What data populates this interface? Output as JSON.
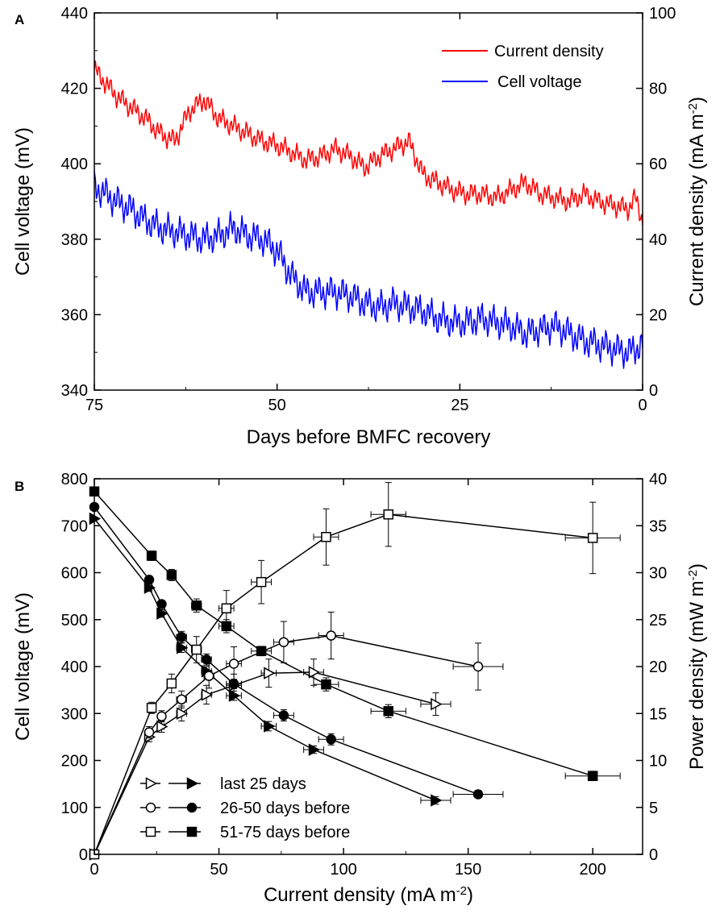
{
  "chart_data": [
    {
      "panel_label": "A",
      "type": "line",
      "xlabel": "Days before BMFC recovery",
      "ylabel_left": "Cell voltage (mV)",
      "ylabel_right": "Current density (mA m",
      "ylabel_right_sup": "-2",
      "ylabel_right_close": ")",
      "xlim": [
        75,
        0
      ],
      "xticks": [
        75,
        50,
        25,
        0
      ],
      "ylim_left": [
        340,
        440
      ],
      "yticks_left": [
        340,
        360,
        380,
        400,
        420,
        440
      ],
      "ylim_right": [
        0,
        100
      ],
      "yticks_right": [
        0,
        20,
        40,
        60,
        80,
        100
      ],
      "legend_position": "top-right",
      "series": [
        {
          "name": "Current density",
          "axis": "right",
          "color": "#ff0000",
          "x": [
            75,
            72,
            70,
            68,
            66,
            64,
            62,
            60,
            58,
            56,
            54,
            52,
            50,
            48,
            46,
            44,
            42,
            40,
            38,
            36,
            34,
            32,
            30,
            28,
            26,
            24,
            22,
            20,
            18,
            16,
            14,
            12,
            10,
            8,
            6,
            4,
            2,
            1,
            0
          ],
          "y": [
            85,
            78,
            75,
            72,
            68,
            66,
            74,
            77,
            72,
            70,
            68,
            66,
            65,
            63,
            61,
            62,
            64,
            62,
            59,
            62,
            64,
            66,
            57,
            55,
            53,
            52,
            52,
            51,
            53,
            55,
            52,
            51,
            50,
            52,
            50,
            49,
            48,
            51,
            45
          ]
        },
        {
          "name": "Cell voltage",
          "axis": "left",
          "color": "#0000ff",
          "x": [
            75,
            72,
            70,
            68,
            66,
            64,
            62,
            60,
            58,
            56,
            54,
            52,
            50,
            48,
            46,
            44,
            42,
            40,
            38,
            36,
            34,
            32,
            30,
            28,
            26,
            24,
            22,
            20,
            18,
            16,
            14,
            12,
            10,
            8,
            6,
            4,
            2,
            1,
            0
          ],
          "y": [
            394,
            390,
            388,
            385,
            383,
            382,
            381,
            380,
            381,
            383,
            381,
            380,
            377,
            370,
            366,
            366,
            366,
            365,
            363,
            362,
            363,
            362,
            361,
            359,
            358,
            358,
            359,
            358,
            357,
            355,
            356,
            357,
            355,
            353,
            352,
            351,
            350,
            351,
            352
          ]
        }
      ]
    },
    {
      "panel_label": "B",
      "type": "scatter",
      "xlabel": "Current density (mA m",
      "xlabel_sup": "-2",
      "xlabel_close": ")",
      "ylabel_left": "Cell voltage (mV)",
      "ylabel_right": "Power density (mW m",
      "ylabel_right_sup": "-2",
      "ylabel_right_close": ")",
      "xlim": [
        0,
        220
      ],
      "xticks": [
        0,
        50,
        100,
        150,
        200
      ],
      "ylim_left": [
        0,
        800
      ],
      "yticks_left": [
        0,
        100,
        200,
        300,
        400,
        500,
        600,
        700,
        800
      ],
      "ylim_right": [
        0,
        40
      ],
      "yticks_right": [
        0,
        5,
        10,
        15,
        20,
        25,
        30,
        35,
        40
      ],
      "legend_position": "bottom-left",
      "legend": [
        {
          "label": "last 25 days",
          "marker": "triangle-right"
        },
        {
          "label": "26-50 days before",
          "marker": "circle"
        },
        {
          "label": "51-75 days before",
          "marker": "square"
        }
      ],
      "series": [
        {
          "name": "last 25 days",
          "kind": "polarization",
          "axis": "left",
          "marker": "triangle-right",
          "filled": true,
          "x": [
            0,
            22,
            27,
            35,
            45,
            56,
            70,
            88,
            137
          ],
          "y": [
            715,
            568,
            513,
            440,
            390,
            338,
            273,
            223,
            115
          ],
          "xerr": [
            0,
            1,
            1,
            2,
            2,
            3,
            3,
            4,
            6
          ],
          "yerr": [
            0,
            8,
            8,
            10,
            10,
            10,
            10,
            8,
            8
          ]
        },
        {
          "name": "last 25 days",
          "kind": "power",
          "axis": "right",
          "marker": "triangle-right",
          "filled": false,
          "x": [
            0,
            22,
            27,
            35,
            45,
            56,
            70,
            88,
            137
          ],
          "y": [
            0,
            12.5,
            13.6,
            15.0,
            17.0,
            18.0,
            19.3,
            19.4,
            16.0
          ],
          "xerr": [
            0,
            1,
            1,
            2,
            2,
            3,
            3,
            4,
            6
          ],
          "yerr": [
            0,
            0.5,
            0.6,
            0.8,
            1.0,
            1.2,
            1.5,
            1.4,
            1.2
          ]
        },
        {
          "name": "26-50 days before",
          "kind": "polarization",
          "axis": "left",
          "marker": "circle",
          "filled": true,
          "x": [
            0,
            22,
            27,
            35,
            45,
            56,
            76,
            95,
            154
          ],
          "y": [
            740,
            585,
            533,
            463,
            415,
            363,
            296,
            245,
            128
          ],
          "xerr": [
            0,
            1,
            1,
            2,
            2,
            3,
            4,
            5,
            10
          ],
          "yerr": [
            0,
            8,
            8,
            12,
            12,
            10,
            12,
            12,
            8
          ]
        },
        {
          "name": "26-50 days before",
          "kind": "power",
          "axis": "right",
          "marker": "circle",
          "filled": false,
          "x": [
            0,
            22,
            27,
            35,
            46,
            56,
            76,
            95,
            154
          ],
          "y": [
            0,
            13.0,
            14.7,
            16.5,
            19.0,
            20.3,
            22.6,
            23.3,
            20.0
          ],
          "xerr": [
            0,
            1,
            1,
            2,
            2,
            3,
            4,
            5,
            10
          ],
          "yerr": [
            0,
            0.6,
            0.6,
            0.9,
            1.3,
            1.8,
            2.2,
            2.5,
            2.5
          ]
        },
        {
          "name": "51-75 days before",
          "kind": "polarization",
          "axis": "left",
          "marker": "square",
          "filled": true,
          "x": [
            0,
            23,
            31,
            41,
            53,
            67,
            93,
            118,
            200
          ],
          "y": [
            773,
            636,
            595,
            530,
            486,
            433,
            362,
            305,
            167
          ],
          "xerr": [
            0,
            1,
            1,
            2,
            3,
            4,
            5,
            7,
            11
          ],
          "yerr": [
            0,
            10,
            12,
            14,
            14,
            10,
            14,
            14,
            10
          ]
        },
        {
          "name": "51-75 days before",
          "kind": "power",
          "axis": "right",
          "marker": "square",
          "filled": false,
          "x": [
            0,
            23,
            31,
            41,
            53,
            67,
            93,
            118,
            200
          ],
          "y": [
            0,
            15.6,
            18.2,
            21.8,
            26.2,
            29.0,
            33.8,
            36.2,
            33.7
          ],
          "xerr": [
            0,
            1,
            1,
            2,
            3,
            4,
            5,
            7,
            11
          ],
          "yerr": [
            0,
            0.6,
            1.0,
            1.4,
            1.9,
            2.3,
            3.0,
            3.4,
            3.8
          ]
        }
      ]
    }
  ]
}
